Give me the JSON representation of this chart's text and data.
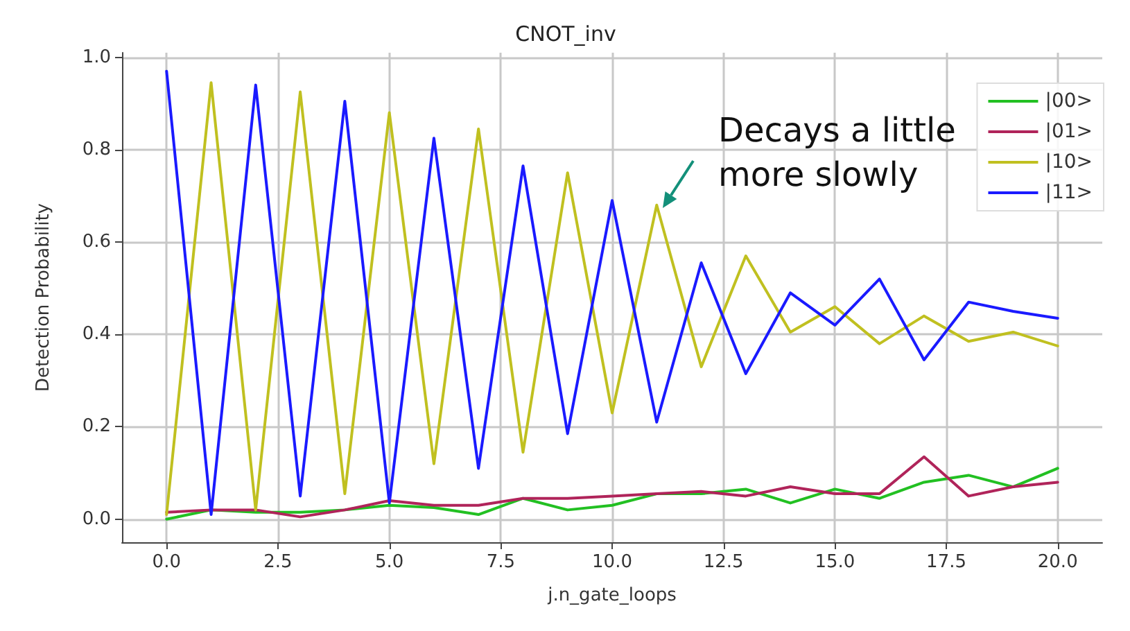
{
  "chart_data": {
    "type": "line",
    "title": "CNOT_inv",
    "xlabel": "j.n_gate_loops",
    "ylabel": "Detection Probability",
    "x": [
      0,
      1,
      2,
      3,
      4,
      5,
      6,
      7,
      8,
      9,
      10,
      11,
      12,
      13,
      14,
      15,
      16,
      17,
      18,
      19,
      20
    ],
    "series": [
      {
        "name": "|00>",
        "color": "#22c022",
        "values": [
          0.0,
          0.02,
          0.015,
          0.015,
          0.02,
          0.03,
          0.025,
          0.01,
          0.045,
          0.02,
          0.03,
          0.055,
          0.055,
          0.065,
          0.035,
          0.065,
          0.045,
          0.08,
          0.095,
          0.07,
          0.11
        ]
      },
      {
        "name": "|01>",
        "color": "#b0245a",
        "values": [
          0.015,
          0.02,
          0.02,
          0.005,
          0.02,
          0.04,
          0.03,
          0.03,
          0.045,
          0.045,
          0.05,
          0.055,
          0.06,
          0.05,
          0.07,
          0.055,
          0.055,
          0.135,
          0.05,
          0.07,
          0.08
        ]
      },
      {
        "name": "|10>",
        "color": "#c0c020",
        "values": [
          0.01,
          0.945,
          0.02,
          0.925,
          0.055,
          0.88,
          0.12,
          0.845,
          0.145,
          0.75,
          0.23,
          0.68,
          0.33,
          0.57,
          0.405,
          0.46,
          0.38,
          0.44,
          0.385,
          0.405,
          0.375
        ]
      },
      {
        "name": "|11>",
        "color": "#1a1aff",
        "values": [
          0.97,
          0.01,
          0.94,
          0.05,
          0.905,
          0.035,
          0.825,
          0.11,
          0.765,
          0.185,
          0.69,
          0.21,
          0.555,
          0.315,
          0.49,
          0.42,
          0.52,
          0.345,
          0.47,
          0.45,
          0.435
        ]
      }
    ],
    "xlim": [
      -1,
      21
    ],
    "xticks": [
      {
        "value": 0,
        "label": "0.0"
      },
      {
        "value": 2.5,
        "label": "2.5"
      },
      {
        "value": 5,
        "label": "5.0"
      },
      {
        "value": 7.5,
        "label": "7.5"
      },
      {
        "value": 10,
        "label": "10.0"
      },
      {
        "value": 12.5,
        "label": "12.5"
      },
      {
        "value": 15,
        "label": "15.0"
      },
      {
        "value": 17.5,
        "label": "17.5"
      },
      {
        "value": 20,
        "label": "20.0"
      }
    ],
    "ylim": [
      -0.05,
      1.01
    ],
    "yticks": [
      {
        "value": 0,
        "label": "0.0"
      },
      {
        "value": 0.2,
        "label": "0.2"
      },
      {
        "value": 0.4,
        "label": "0.4"
      },
      {
        "value": 0.6,
        "label": "0.6"
      },
      {
        "value": 0.8,
        "label": "0.8"
      },
      {
        "value": 1,
        "label": "1.0"
      }
    ],
    "annotations": [
      "Decays a little\nmore slowly"
    ],
    "grid": true,
    "legend": "top right",
    "marker": "none",
    "line_style": "solid"
  }
}
